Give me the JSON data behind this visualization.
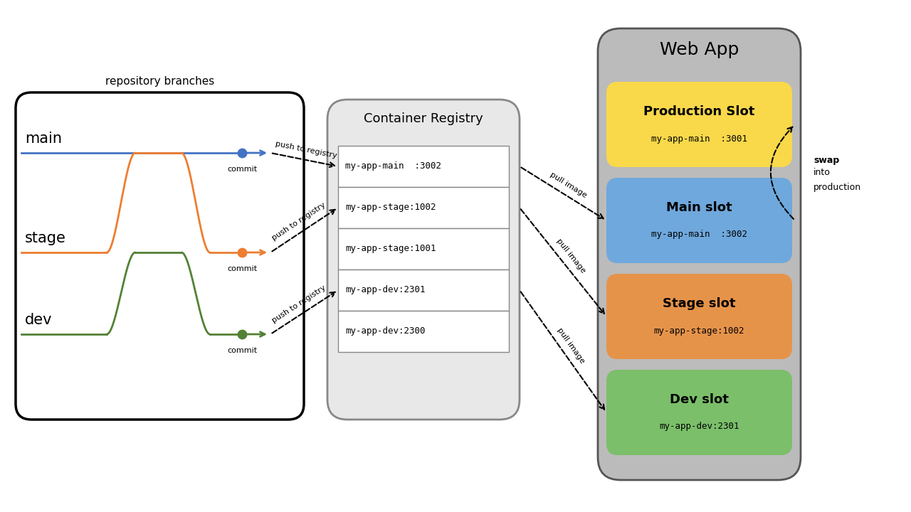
{
  "bg_color": "#ffffff",
  "fig_w": 12.8,
  "fig_h": 7.2,
  "dpi": 100,
  "branch_colors": {
    "main": "#4472c4",
    "stage": "#ed7d31",
    "dev": "#538135"
  },
  "registry_items": [
    "my-app-main  :3002",
    "my-app-stage:1002",
    "my-app-stage:1001",
    "my-app-dev:2301",
    "my-app-dev:2300"
  ],
  "slots": [
    {
      "label": "Production Slot",
      "sublabel": "my-app-main  :3001",
      "color": "#f9d84a"
    },
    {
      "label": "Main slot",
      "sublabel": "my-app-main  :3002",
      "color": "#6fa8dc"
    },
    {
      "label": "Stage slot",
      "sublabel": "my-app-stage:1002",
      "color": "#e6934a"
    },
    {
      "label": "Dev slot",
      "sublabel": "my-app-dev:2301",
      "color": "#7bbf6a"
    }
  ],
  "repo_box_label": "repository branches",
  "container_registry_label": "Container Registry",
  "webapp_label": "Web App"
}
